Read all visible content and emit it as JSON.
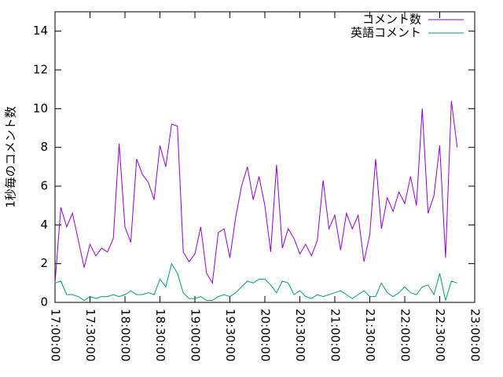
{
  "chart_data": {
    "type": "line",
    "ylabel": "1秒毎のコメント数",
    "x": [
      "17:00:00",
      "17:05:00",
      "17:10:00",
      "17:15:00",
      "17:20:00",
      "17:25:00",
      "17:30:00",
      "17:35:00",
      "17:40:00",
      "17:45:00",
      "17:50:00",
      "17:55:00",
      "18:00:00",
      "18:05:00",
      "18:10:00",
      "18:15:00",
      "18:20:00",
      "18:25:00",
      "18:30:00",
      "18:35:00",
      "18:40:00",
      "18:45:00",
      "18:50:00",
      "18:55:00",
      "19:00:00",
      "19:05:00",
      "19:10:00",
      "19:15:00",
      "19:20:00",
      "19:25:00",
      "19:30:00",
      "19:35:00",
      "19:40:00",
      "19:45:00",
      "19:50:00",
      "19:55:00",
      "20:00:00",
      "20:05:00",
      "20:10:00",
      "20:15:00",
      "20:20:00",
      "20:25:00",
      "20:30:00",
      "20:35:00",
      "20:40:00",
      "20:45:00",
      "20:50:00",
      "20:55:00",
      "21:00:00",
      "21:05:00",
      "21:10:00",
      "21:15:00",
      "21:20:00",
      "21:25:00",
      "21:30:00",
      "21:35:00",
      "21:40:00",
      "21:45:00",
      "21:50:00",
      "21:55:00",
      "22:00:00",
      "22:05:00",
      "22:10:00",
      "22:15:00",
      "22:20:00",
      "22:25:00",
      "22:30:00",
      "22:35:00",
      "22:40:00",
      "22:45:00"
    ],
    "series": [
      {
        "name": "コメント数",
        "color": "#9400d3",
        "values": [
          1.0,
          4.9,
          3.9,
          4.6,
          3.2,
          1.8,
          3.0,
          2.4,
          2.8,
          2.6,
          3.3,
          8.2,
          3.9,
          3.1,
          7.4,
          6.6,
          6.2,
          5.3,
          8.1,
          7.0,
          9.2,
          9.1,
          2.6,
          2.1,
          2.5,
          3.9,
          1.5,
          1.0,
          3.6,
          3.8,
          2.3,
          4.4,
          6.0,
          7.0,
          5.3,
          6.5,
          5.0,
          2.6,
          7.1,
          2.8,
          3.8,
          3.3,
          2.5,
          3.0,
          2.4,
          3.2,
          6.3,
          3.8,
          4.5,
          2.7,
          4.6,
          3.8,
          4.5,
          2.1,
          3.5,
          7.4,
          3.8,
          5.4,
          4.7,
          5.7,
          5.1,
          6.5,
          5.0,
          10.0,
          4.6,
          5.5,
          8.1,
          2.3,
          10.4,
          8.0
        ]
      },
      {
        "name": "英語コメント",
        "color": "#009e73",
        "values": [
          1.0,
          1.1,
          0.4,
          0.4,
          0.3,
          0.1,
          0.3,
          0.2,
          0.3,
          0.3,
          0.4,
          0.3,
          0.4,
          0.6,
          0.4,
          0.4,
          0.5,
          0.4,
          1.2,
          0.8,
          2.0,
          1.5,
          0.5,
          0.2,
          0.2,
          0.3,
          0.1,
          0.1,
          0.3,
          0.4,
          0.3,
          0.5,
          0.8,
          1.1,
          1.0,
          1.2,
          1.2,
          0.9,
          0.5,
          1.1,
          1.0,
          0.4,
          0.6,
          0.3,
          0.2,
          0.4,
          0.3,
          0.4,
          0.5,
          0.6,
          0.4,
          0.2,
          0.4,
          0.6,
          0.3,
          0.3,
          1.0,
          0.5,
          0.3,
          0.5,
          0.8,
          0.5,
          0.4,
          0.8,
          0.9,
          0.4,
          1.5,
          0.1,
          1.1,
          1.0
        ]
      }
    ],
    "xlim": [
      "17:00:00",
      "23:00:00"
    ],
    "xticks": [
      "17:00:00",
      "17:30:00",
      "18:00:00",
      "18:30:00",
      "19:00:00",
      "19:30:00",
      "20:00:00",
      "20:30:00",
      "21:00:00",
      "21:30:00",
      "22:00:00",
      "22:30:00",
      "23:00:00"
    ],
    "ylim": [
      0,
      15
    ],
    "yticks": [
      0,
      2,
      4,
      6,
      8,
      10,
      12,
      14
    ],
    "legend": "top-right"
  }
}
